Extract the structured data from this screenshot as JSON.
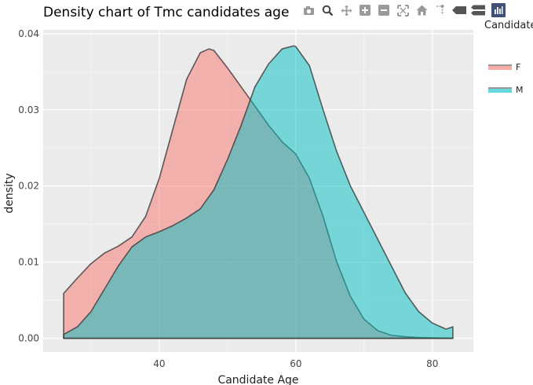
{
  "title": "Density chart of Tmc candidates age",
  "modebar": {
    "icons": [
      "camera-icon",
      "zoom-icon",
      "pan-icon",
      "zoom-in-icon",
      "zoom-out-icon",
      "autoscale-icon",
      "reset-axes-icon",
      "spike-lines-icon",
      "hover-closest-icon",
      "hover-compare-icon",
      "plotly-logo-icon"
    ]
  },
  "legend": {
    "title": "Candidate",
    "items": [
      {
        "label": "F",
        "color": "#F8766D"
      },
      {
        "label": "M",
        "color": "#00BFC4"
      }
    ]
  },
  "chart_data": {
    "type": "area",
    "title": "Density chart of Tmc candidates age",
    "xlabel": "Candidate Age",
    "ylabel": "density",
    "xlim": [
      23,
      86
    ],
    "ylim": [
      -0.0018,
      0.0405
    ],
    "xticks": [
      40,
      60,
      80
    ],
    "yticks": [
      0.0,
      0.01,
      0.02,
      0.03,
      0.04
    ],
    "ytick_labels": [
      "0.00",
      "0.01",
      "0.02",
      "0.03",
      "0.04"
    ],
    "grid": true,
    "legend_position": "right",
    "background": "#EBEBEB",
    "series": [
      {
        "name": "F",
        "fill": "#F8766D",
        "x": [
          26,
          28,
          30,
          32,
          34,
          36,
          38,
          40,
          42,
          44,
          46,
          47.3,
          48,
          50,
          52,
          54,
          56,
          58,
          60,
          62,
          64,
          66,
          68,
          70,
          72,
          74,
          76,
          78,
          80,
          82,
          83
        ],
        "y": [
          0.0059,
          0.0079,
          0.0098,
          0.0112,
          0.0121,
          0.0133,
          0.016,
          0.021,
          0.0275,
          0.034,
          0.0375,
          0.038,
          0.0378,
          0.0355,
          0.033,
          0.0305,
          0.028,
          0.0258,
          0.0242,
          0.021,
          0.016,
          0.01,
          0.0055,
          0.0025,
          0.001,
          0.0004,
          0.0002,
          0.0001,
          5e-05,
          2e-05,
          1e-05
        ]
      },
      {
        "name": "M",
        "fill": "#00BFC4",
        "x": [
          26,
          28,
          30,
          32,
          34,
          36,
          38,
          40,
          42,
          44,
          46,
          48,
          50,
          52,
          54,
          56,
          58,
          59.7,
          60,
          62,
          64,
          66,
          68,
          70,
          72,
          74,
          76,
          78,
          80,
          82,
          83
        ],
        "y": [
          0.0005,
          0.0015,
          0.0035,
          0.0065,
          0.0095,
          0.012,
          0.0133,
          0.014,
          0.0148,
          0.0158,
          0.017,
          0.0195,
          0.0235,
          0.028,
          0.033,
          0.036,
          0.038,
          0.0384,
          0.0383,
          0.0358,
          0.03,
          0.0245,
          0.02,
          0.0165,
          0.013,
          0.0095,
          0.006,
          0.0035,
          0.002,
          0.0012,
          0.0015
        ]
      }
    ]
  }
}
